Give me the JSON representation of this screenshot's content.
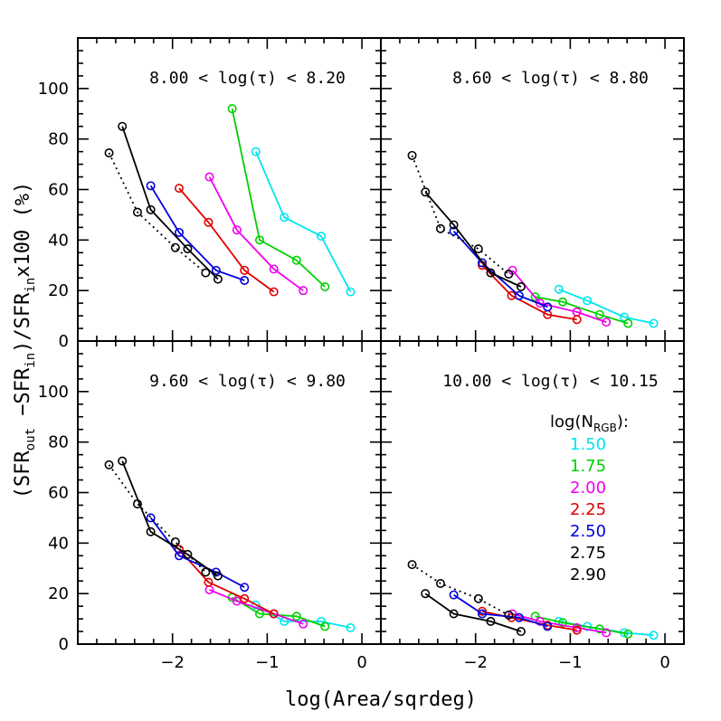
{
  "figure": {
    "xlabel": "log(Area/sqrdeg)",
    "ylabel_parts": [
      "(SFR",
      "out",
      " −SFR",
      "in",
      ")/SFR",
      "in",
      "x100 (%)"
    ]
  },
  "legend": {
    "title_parts": [
      "log(N",
      "RGB",
      "):"
    ],
    "entries": [
      {
        "label": "1.50",
        "color": "#00e5ee"
      },
      {
        "label": "1.75",
        "color": "#00d000"
      },
      {
        "label": "2.00",
        "color": "#ee00ee"
      },
      {
        "label": "2.25",
        "color": "#e00000"
      },
      {
        "label": "2.50",
        "color": "#0000dd"
      },
      {
        "label": "2.75",
        "color": "#000000"
      },
      {
        "label": "2.90",
        "color": "#000000"
      }
    ]
  },
  "chart_data": [
    {
      "type": "line",
      "title": "8.00 < log(τ) < 8.20",
      "xlim": [
        -3.0,
        0.2
      ],
      "ylim": [
        0,
        120
      ],
      "xticks": [
        -2,
        -1,
        0
      ],
      "yticks": [
        0,
        20,
        40,
        60,
        80,
        100
      ],
      "series": [
        {
          "name": "1.50",
          "color": "#00e5ee",
          "style": "solid",
          "x": [
            -1.12,
            -0.82,
            -0.43,
            -0.12
          ],
          "y": [
            75,
            49,
            41.5,
            19.5
          ]
        },
        {
          "name": "1.75",
          "color": "#00d000",
          "style": "solid",
          "x": [
            -1.37,
            -1.08,
            -0.69,
            -0.39
          ],
          "y": [
            92,
            40,
            32,
            21.5
          ]
        },
        {
          "name": "2.00",
          "color": "#ee00ee",
          "style": "solid",
          "x": [
            -1.61,
            -1.32,
            -0.93,
            -0.62
          ],
          "y": [
            65,
            44,
            28.5,
            20
          ]
        },
        {
          "name": "2.25",
          "color": "#e00000",
          "style": "solid",
          "x": [
            -1.93,
            -1.62,
            -1.24,
            -0.93
          ],
          "y": [
            60.5,
            47,
            28,
            19.5
          ]
        },
        {
          "name": "2.50",
          "color": "#0000dd",
          "style": "solid",
          "x": [
            -2.23,
            -1.93,
            -1.54,
            -1.24
          ],
          "y": [
            61.5,
            43,
            28,
            24
          ]
        },
        {
          "name": "2.75",
          "color": "#000000",
          "style": "solid",
          "x": [
            -2.53,
            -2.23,
            -1.84,
            -1.52
          ],
          "y": [
            85,
            52,
            36.5,
            24.5
          ]
        },
        {
          "name": "2.90",
          "color": "#000000",
          "style": "dotted",
          "x": [
            -2.67,
            -2.37,
            -1.97,
            -1.65
          ],
          "y": [
            74.5,
            51,
            37,
            27
          ]
        }
      ]
    },
    {
      "type": "line",
      "title": "8.60 < log(τ) < 8.80",
      "xlim": [
        -3.0,
        0.2
      ],
      "ylim": [
        0,
        120
      ],
      "xticks": [
        -2,
        -1,
        0
      ],
      "yticks": [
        0,
        20,
        40,
        60,
        80,
        100
      ],
      "series": [
        {
          "name": "1.50",
          "color": "#00e5ee",
          "style": "solid",
          "x": [
            -1.12,
            -0.82,
            -0.43,
            -0.12
          ],
          "y": [
            20.5,
            16,
            9.5,
            7
          ]
        },
        {
          "name": "1.75",
          "color": "#00d000",
          "style": "solid",
          "x": [
            -1.37,
            -1.08,
            -0.69,
            -0.39
          ],
          "y": [
            17.5,
            15.5,
            10.5,
            7
          ]
        },
        {
          "name": "2.00",
          "color": "#ee00ee",
          "style": "solid",
          "x": [
            -1.61,
            -1.32,
            -0.93,
            -0.62
          ],
          "y": [
            28,
            15,
            11.5,
            7.5
          ]
        },
        {
          "name": "2.25",
          "color": "#e00000",
          "style": "solid",
          "x": [
            -1.93,
            -1.62,
            -1.24,
            -0.93
          ],
          "y": [
            30,
            18,
            10.5,
            8.5
          ]
        },
        {
          "name": "2.50",
          "color": "#0000dd",
          "style": "solid",
          "x": [
            -2.23,
            -1.93,
            -1.54,
            -1.24
          ],
          "y": [
            43.5,
            31,
            18,
            13.5
          ]
        },
        {
          "name": "2.75",
          "color": "#000000",
          "style": "solid",
          "x": [
            -2.53,
            -2.23,
            -1.84,
            -1.52
          ],
          "y": [
            59,
            46,
            27,
            21.5
          ]
        },
        {
          "name": "2.90",
          "color": "#000000",
          "style": "dotted",
          "x": [
            -2.67,
            -2.37,
            -1.97,
            -1.65
          ],
          "y": [
            73.5,
            44.5,
            36.5,
            26.5
          ]
        }
      ]
    },
    {
      "type": "line",
      "title": "9.60 < log(τ) < 9.80",
      "xlim": [
        -3.0,
        0.2
      ],
      "ylim": [
        0,
        120
      ],
      "xticks": [
        -2,
        -1,
        0
      ],
      "yticks": [
        0,
        20,
        40,
        60,
        80,
        100
      ],
      "series": [
        {
          "name": "1.50",
          "color": "#00e5ee",
          "style": "solid",
          "x": [
            -1.12,
            -0.82,
            -0.43,
            -0.12
          ],
          "y": [
            15.5,
            9,
            9,
            6.5
          ]
        },
        {
          "name": "1.75",
          "color": "#00d000",
          "style": "solid",
          "x": [
            -1.37,
            -1.08,
            -0.69,
            -0.39
          ],
          "y": [
            18.5,
            12,
            11,
            7
          ]
        },
        {
          "name": "2.00",
          "color": "#ee00ee",
          "style": "solid",
          "x": [
            -1.61,
            -1.32,
            -0.93,
            -0.62
          ],
          "y": [
            21.5,
            17,
            12,
            8
          ]
        },
        {
          "name": "2.25",
          "color": "#e00000",
          "style": "solid",
          "x": [
            -1.93,
            -1.62,
            -1.24,
            -0.93
          ],
          "y": [
            37.5,
            24.5,
            18,
            12
          ]
        },
        {
          "name": "2.50",
          "color": "#0000dd",
          "style": "solid",
          "x": [
            -2.23,
            -1.93,
            -1.54,
            -1.24
          ],
          "y": [
            50,
            35,
            28.5,
            22.5
          ]
        },
        {
          "name": "2.75",
          "color": "#000000",
          "style": "solid",
          "x": [
            -2.53,
            -2.23,
            -1.84,
            -1.52
          ],
          "y": [
            72.5,
            44.5,
            35.5,
            27
          ]
        },
        {
          "name": "2.90",
          "color": "#000000",
          "style": "dotted",
          "x": [
            -2.67,
            -2.37,
            -1.97,
            -1.65
          ],
          "y": [
            71,
            55.5,
            40.5,
            28.5
          ]
        }
      ]
    },
    {
      "type": "line",
      "title": "10.00 < log(τ) < 10.15",
      "xlim": [
        -3.0,
        0.2
      ],
      "ylim": [
        0,
        120
      ],
      "xticks": [
        -2,
        -1,
        0
      ],
      "yticks": [
        0,
        20,
        40,
        60,
        80,
        100
      ],
      "series": [
        {
          "name": "1.50",
          "color": "#00e5ee",
          "style": "solid",
          "x": [
            -1.12,
            -0.82,
            -0.43,
            -0.12
          ],
          "y": [
            9,
            7,
            4.5,
            3.5
          ]
        },
        {
          "name": "1.75",
          "color": "#00d000",
          "style": "solid",
          "x": [
            -1.37,
            -1.08,
            -0.69,
            -0.39
          ],
          "y": [
            11,
            8.5,
            6,
            4
          ]
        },
        {
          "name": "2.00",
          "color": "#ee00ee",
          "style": "solid",
          "x": [
            -1.61,
            -1.32,
            -0.93,
            -0.62
          ],
          "y": [
            12,
            9,
            6.5,
            4.5
          ]
        },
        {
          "name": "2.25",
          "color": "#e00000",
          "style": "solid",
          "x": [
            -1.93,
            -1.62,
            -1.24,
            -0.93
          ],
          "y": [
            13,
            10.5,
            7.5,
            5.5
          ]
        },
        {
          "name": "2.50",
          "color": "#0000dd",
          "style": "solid",
          "x": [
            -2.23,
            -1.93,
            -1.54,
            -1.24
          ],
          "y": [
            19.5,
            12,
            10.5,
            7
          ]
        },
        {
          "name": "2.75",
          "color": "#000000",
          "style": "solid",
          "x": [
            -2.53,
            -2.23,
            -1.84,
            -1.52
          ],
          "y": [
            20,
            12,
            9,
            5
          ]
        },
        {
          "name": "2.90",
          "color": "#000000",
          "style": "dotted",
          "x": [
            -2.67,
            -2.37,
            -1.97,
            -1.65
          ],
          "y": [
            31.5,
            24,
            18,
            11.5
          ]
        }
      ]
    }
  ]
}
